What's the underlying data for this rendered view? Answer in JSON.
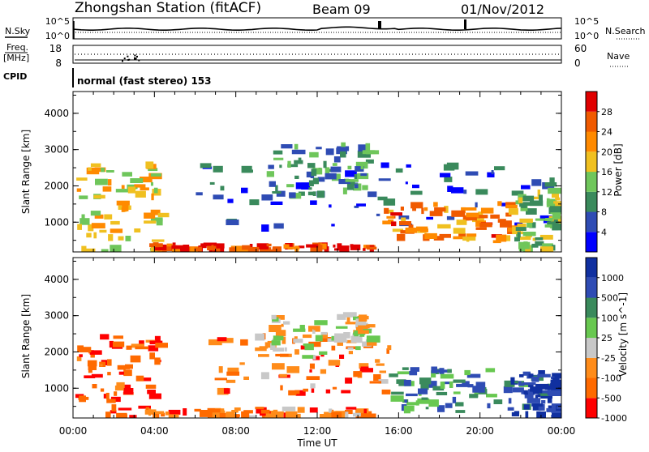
{
  "header": {
    "station_title": "Zhongshan Station (fitACF)",
    "beam": "Beam 09",
    "date": "01/Nov/2012"
  },
  "side_labels": {
    "nsky": "N.Sky",
    "freq_line1": "Freq.",
    "freq_line2": "[MHz]",
    "cpid": "CPID",
    "nsearch": "N.Search",
    "nave": "Nave"
  },
  "mode_text": "normal (fast stereo) 153",
  "noise_panel": {
    "left_ticks": [
      "10^5",
      "10^0"
    ],
    "right_ticks": [
      "10^5",
      "10^0"
    ]
  },
  "freq_panel": {
    "left_ticks": [
      "18",
      "8"
    ],
    "right_ticks": [
      "60",
      "0"
    ]
  },
  "time_axis": {
    "label": "Time UT",
    "ticks": [
      "00:00",
      "04:00",
      "08:00",
      "12:00",
      "16:00",
      "20:00",
      "00:00"
    ]
  },
  "colors": {
    "power": [
      "#0000ff",
      "#2f4cb4",
      "#3a8a5c",
      "#6fc65b",
      "#f0c020",
      "#ff8a00",
      "#f05a00",
      "#e00000"
    ],
    "velocity": [
      "#ff0000",
      "#ff6a00",
      "#ff8c1a",
      "#c8c8c8",
      "#68c850",
      "#3a8a5c",
      "#2f4cb4",
      "#1030a0"
    ]
  },
  "chart_data": [
    {
      "type": "heatmap",
      "ylabel": "Slant Range [km]",
      "xlabel": "",
      "ylim": [
        180,
        4600
      ],
      "yticks": [
        "1000",
        "2000",
        "3000",
        "4000"
      ],
      "colorbar_label": "Power [dB]",
      "colorbar_ticks": [
        "4",
        "8",
        "12",
        "16",
        "20",
        "24",
        "28"
      ],
      "bands": [
        {
          "t0": 0.1,
          "t1": 4.2,
          "r0": 200,
          "r1": 2700,
          "level": 0.55
        },
        {
          "t0": 3.5,
          "t1": 14.6,
          "r0": 220,
          "r1": 450,
          "level": 0.82
        },
        {
          "t0": 6.0,
          "t1": 23.9,
          "r0": 900,
          "r1": 2700,
          "level": 0.2
        },
        {
          "t0": 9.5,
          "t1": 14.5,
          "r0": 1800,
          "r1": 3200,
          "level": 0.3
        },
        {
          "t0": 15.2,
          "t1": 21.5,
          "r0": 500,
          "r1": 1600,
          "level": 0.72
        },
        {
          "t0": 21.5,
          "t1": 24.0,
          "r0": 200,
          "r1": 2000,
          "level": 0.45
        }
      ]
    },
    {
      "type": "heatmap",
      "ylabel": "Slant Range [km]",
      "xlabel": "Time UT",
      "ylim": [
        180,
        4600
      ],
      "yticks": [
        "1000",
        "2000",
        "3000",
        "4000"
      ],
      "colorbar_label": "Velocity [m s^-1]",
      "colorbar_ticks": [
        "1000",
        "500",
        "100",
        "25",
        "-25",
        "-100",
        "-500",
        "-1000"
      ],
      "bands": [
        {
          "t0": 0.1,
          "t1": 4.2,
          "r0": 200,
          "r1": 2500,
          "level": 0.12
        },
        {
          "t0": 3.5,
          "t1": 14.6,
          "r0": 200,
          "r1": 500,
          "level": 0.25
        },
        {
          "t0": 6.5,
          "t1": 15.5,
          "r0": 900,
          "r1": 2600,
          "level": 0.22
        },
        {
          "t0": 9.5,
          "t1": 14.5,
          "r0": 1900,
          "r1": 3100,
          "level": 0.43
        },
        {
          "t0": 15.5,
          "t1": 22.0,
          "r0": 400,
          "r1": 1600,
          "level": 0.7
        },
        {
          "t0": 21.5,
          "t1": 24.0,
          "r0": 200,
          "r1": 1500,
          "level": 0.9
        }
      ]
    }
  ]
}
